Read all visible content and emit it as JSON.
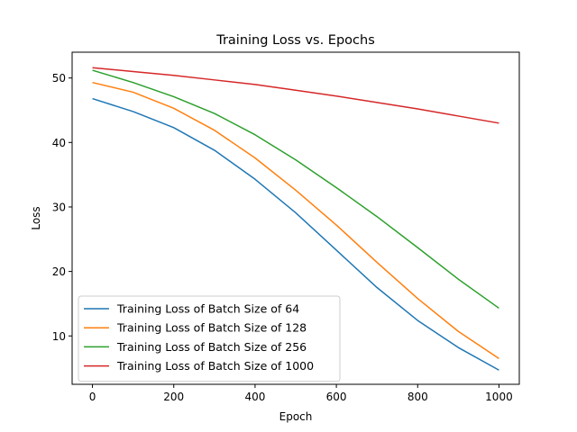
{
  "chart_data": {
    "type": "line",
    "title": "Training Loss vs. Epochs",
    "xlabel": "Epoch",
    "ylabel": "Loss",
    "xlim": [
      -50,
      1050
    ],
    "ylim": [
      2.5,
      54
    ],
    "xticks": [
      0,
      200,
      400,
      600,
      800,
      1000
    ],
    "yticks": [
      10,
      20,
      30,
      40,
      50
    ],
    "grid": false,
    "legend_position": "lower-left",
    "series": [
      {
        "name": "Training Loss of Batch Size of 64",
        "color": "#1f77b4",
        "x": [
          0,
          100,
          200,
          300,
          400,
          500,
          600,
          700,
          800,
          900,
          1000
        ],
        "y": [
          46.8,
          44.8,
          42.3,
          38.8,
          34.3,
          29.1,
          23.3,
          17.5,
          12.4,
          8.2,
          4.7
        ]
      },
      {
        "name": "Training Loss of Batch Size of 128",
        "color": "#ff7f0e",
        "x": [
          0,
          100,
          200,
          300,
          400,
          500,
          600,
          700,
          800,
          900,
          1000
        ],
        "y": [
          49.3,
          47.8,
          45.3,
          41.9,
          37.6,
          32.6,
          27.2,
          21.4,
          15.8,
          10.7,
          6.5
        ]
      },
      {
        "name": "Training Loss of Batch Size of 256",
        "color": "#2ca02c",
        "x": [
          0,
          100,
          200,
          300,
          400,
          500,
          600,
          700,
          800,
          900,
          1000
        ],
        "y": [
          51.2,
          49.3,
          47.1,
          44.5,
          41.2,
          37.3,
          33.0,
          28.5,
          23.7,
          18.8,
          14.3
        ]
      },
      {
        "name": "Training Loss of Batch Size of 1000",
        "color": "#d62728",
        "x": [
          0,
          100,
          200,
          300,
          400,
          500,
          600,
          700,
          800,
          900,
          1000
        ],
        "y": [
          51.6,
          51.0,
          50.4,
          49.7,
          49.0,
          48.1,
          47.2,
          46.2,
          45.2,
          44.1,
          43.0
        ]
      }
    ]
  }
}
